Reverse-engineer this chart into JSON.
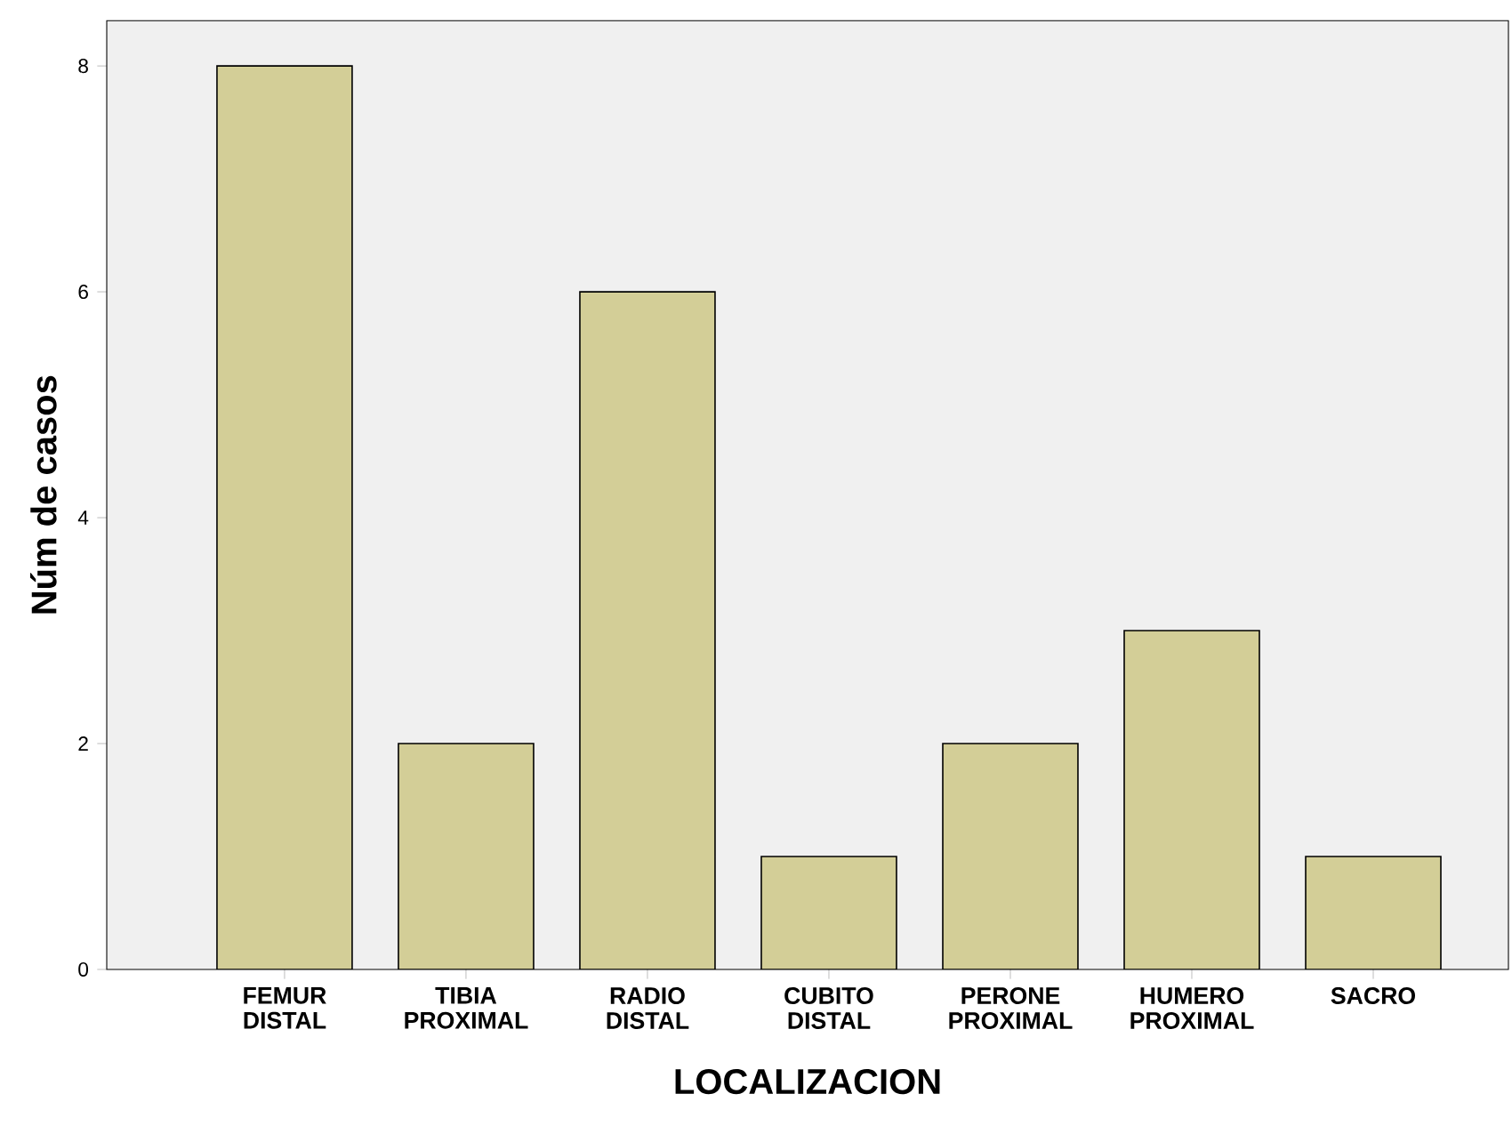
{
  "chart_data": {
    "type": "bar",
    "xlabel": "LOCALIZACION",
    "ylabel": "Núm de casos",
    "categories": [
      "FEMUR DISTAL",
      "TIBIA PROXIMAL",
      "RADIO DISTAL",
      "CUBITO DISTAL",
      "PERONE PROXIMAL",
      "HUMERO PROXIMAL",
      "SACRO"
    ],
    "values": [
      8,
      2,
      6,
      1,
      2,
      3,
      1
    ],
    "color": "#d3ce97",
    "ylim": [
      0,
      8.4
    ],
    "yticks": [
      0,
      2,
      4,
      6,
      8
    ]
  }
}
